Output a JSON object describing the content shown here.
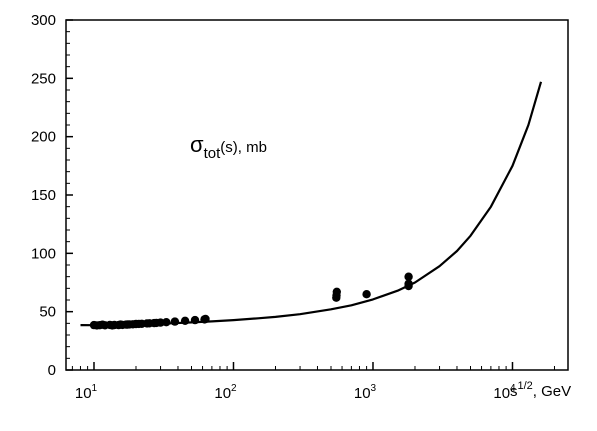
{
  "chart_data": {
    "type": "scatter",
    "annotation": {
      "symbol": "σ",
      "subscript": "tot",
      "suffix": "(s), mb"
    },
    "xlabel": "s",
    "xlabel_exponent": "1/2",
    "xlabel_suffix": ", GeV",
    "x_scale": "log",
    "xlim": [
      6.3,
      25000
    ],
    "ylim": [
      0,
      300
    ],
    "y_ticks": [
      0,
      50,
      100,
      150,
      200,
      250,
      300
    ],
    "x_ticks": [
      {
        "value": 10,
        "base": "10",
        "exponent": "1"
      },
      {
        "value": 100,
        "base": "10",
        "exponent": "2"
      },
      {
        "value": 1000,
        "base": "10",
        "exponent": "3"
      },
      {
        "value": 10000,
        "base": "10",
        "exponent": "4"
      }
    ],
    "grid": false,
    "series": [
      {
        "kind": "points",
        "x": [
          10,
          10.5,
          11,
          11.5,
          12,
          13,
          13.5,
          14,
          15,
          15.5,
          16,
          17,
          17.5,
          18,
          19,
          20,
          21,
          22,
          24,
          25,
          27,
          28,
          30,
          33,
          38,
          45,
          53,
          62,
          63,
          546,
          548,
          550,
          900,
          1800,
          1800,
          1800
        ],
        "y": [
          38.5,
          38.2,
          38.4,
          38.8,
          38.3,
          38.7,
          38.2,
          38.6,
          38.5,
          38.9,
          38.7,
          38.9,
          39.0,
          39.1,
          39.2,
          39.4,
          39.5,
          39.6,
          39.9,
          40.0,
          40.2,
          40.4,
          40.6,
          41.0,
          41.5,
          42.2,
          42.8,
          43.4,
          43.7,
          62,
          64,
          67,
          65,
          80,
          72,
          74
        ]
      },
      {
        "kind": "curve",
        "x": [
          8,
          10,
          15,
          20,
          30,
          50,
          70,
          100,
          150,
          200,
          300,
          500,
          700,
          1000,
          1500,
          2000,
          3000,
          4000,
          5000,
          7000,
          10000,
          13000,
          16000
        ],
        "y": [
          38.5,
          38.4,
          38.5,
          38.9,
          39.6,
          40.8,
          41.7,
          42.8,
          44.3,
          45.5,
          47.8,
          52.0,
          55.5,
          60.5,
          68.0,
          75.0,
          89.0,
          102.0,
          115.0,
          140.0,
          175.0,
          210.0,
          247.0
        ]
      }
    ]
  }
}
